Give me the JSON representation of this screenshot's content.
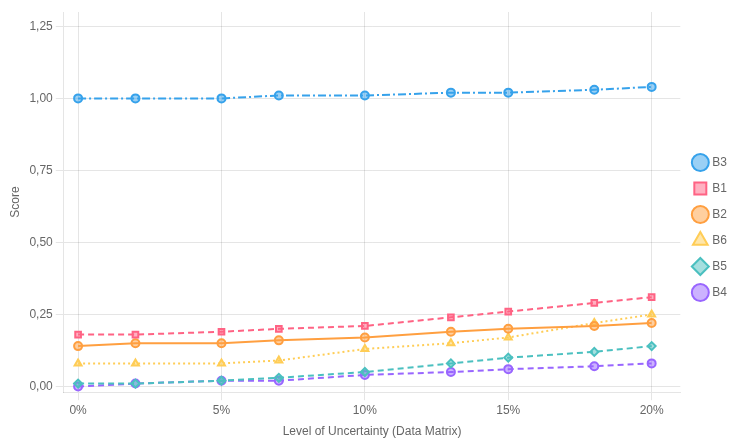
{
  "chart_data": {
    "type": "line",
    "xlabel": "Level of Uncertainty (Data Matrix)",
    "ylabel": "Score",
    "x": [
      0,
      2,
      5,
      7,
      10,
      13,
      15,
      18,
      20
    ],
    "series": [
      {
        "name": "B3",
        "values": [
          1.0,
          1.0,
          1.0,
          1.01,
          1.01,
          1.02,
          1.02,
          1.03,
          1.04
        ],
        "marker": "circle",
        "line_style": "dashdot"
      },
      {
        "name": "B1",
        "values": [
          0.18,
          0.18,
          0.19,
          0.2,
          0.21,
          0.24,
          0.26,
          0.29,
          0.31
        ],
        "marker": "square",
        "line_style": "dashed"
      },
      {
        "name": "B2",
        "values": [
          0.14,
          0.15,
          0.15,
          0.16,
          0.17,
          0.19,
          0.2,
          0.21,
          0.22
        ],
        "marker": "circle",
        "line_style": "solid"
      },
      {
        "name": "B6",
        "values": [
          0.08,
          0.08,
          0.08,
          0.09,
          0.13,
          0.15,
          0.17,
          0.22,
          0.25
        ],
        "marker": "triangle",
        "line_style": "dotted"
      },
      {
        "name": "B5",
        "values": [
          0.01,
          0.01,
          0.02,
          0.03,
          0.05,
          0.08,
          0.1,
          0.12,
          0.14
        ],
        "marker": "diamond",
        "line_style": "dashed"
      },
      {
        "name": "B4",
        "values": [
          0.0,
          0.01,
          0.02,
          0.02,
          0.04,
          0.05,
          0.06,
          0.07,
          0.08
        ],
        "marker": "circle",
        "line_style": "dashed"
      }
    ],
    "xlim": [
      -0.5,
      21
    ],
    "xticks": [
      {
        "value": 0,
        "label": "0%"
      },
      {
        "value": 5,
        "label": "5%"
      },
      {
        "value": 10,
        "label": "10%"
      },
      {
        "value": 15,
        "label": "15%"
      },
      {
        "value": 20,
        "label": "20%"
      }
    ],
    "ylim": [
      -0.02,
      1.3
    ],
    "yticks": [
      {
        "value": 0.0,
        "label": "0,00"
      },
      {
        "value": 0.25,
        "label": "0,25"
      },
      {
        "value": 0.5,
        "label": "0,50"
      },
      {
        "value": 0.75,
        "label": "0,75"
      },
      {
        "value": 1.0,
        "label": "1,00"
      },
      {
        "value": 1.25,
        "label": "1,25"
      }
    ],
    "grid": true,
    "legend": "right"
  }
}
